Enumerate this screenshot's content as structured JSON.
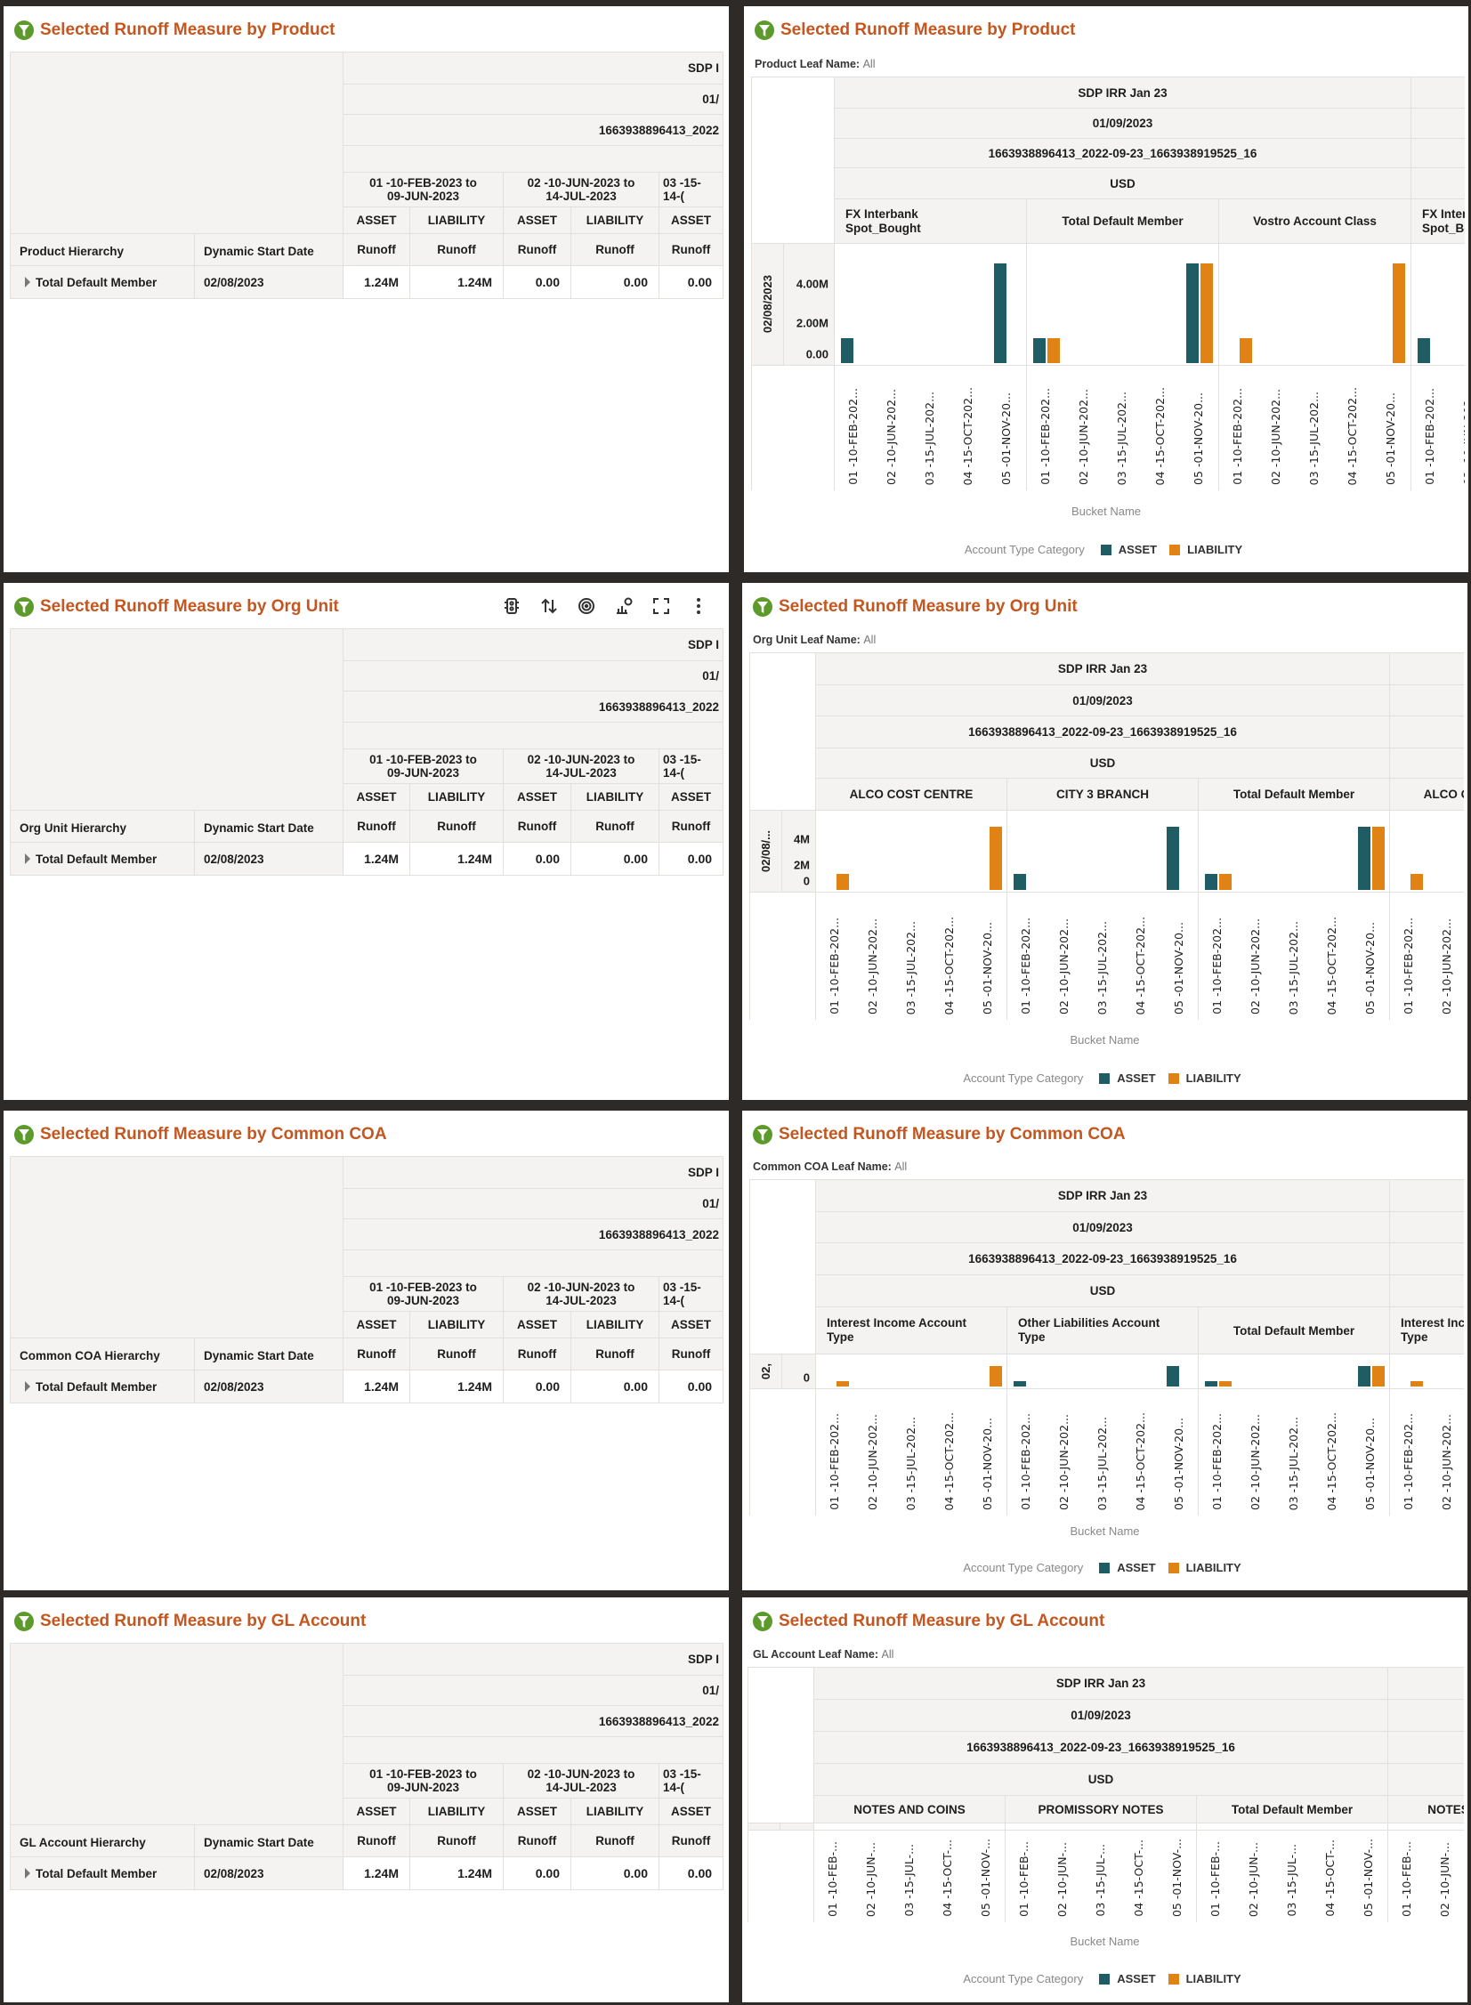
{
  "colors": {
    "asset": "#1f5c63",
    "liability": "#e08214",
    "title": "#c4561f",
    "funnel": "#5d9a2c"
  },
  "left_panels": [
    {
      "title": "Selected Runoff Measure by Product",
      "icon": "funnel-icon",
      "table": {
        "header_rows": [
          "SDP I",
          "01/",
          "1663938896413_2022",
          ""
        ],
        "buckets": [
          "01 -10-FEB-2023 to\n09-JUN-2023",
          "02 -10-JUN-2023 to\n14-JUL-2023",
          "03 -15-\n14-("
        ],
        "account_types": [
          "ASSET",
          "LIABILITY",
          "ASSET",
          "LIABILITY",
          "ASSET"
        ],
        "measures": [
          "Runoff",
          "Runoff",
          "Runoff",
          "Runoff",
          "Runoff"
        ],
        "hierarchy_header": "Product Hierarchy",
        "date_header": "Dynamic Start Date",
        "rows": [
          {
            "member": "Total Default Member",
            "date": "02/08/2023",
            "values": [
              "1.24M",
              "1.24M",
              "0.00",
              "0.00",
              "0.00"
            ]
          }
        ]
      }
    },
    {
      "title": "Selected Runoff Measure by Org Unit",
      "icon": "funnel-icon",
      "toolbar": [
        "conditional-format-icon",
        "sort-icon",
        "target-icon",
        "chart-type-icon",
        "maximize-icon",
        "more-options-icon"
      ],
      "table": {
        "header_rows": [
          "SDP I",
          "01/",
          "1663938896413_2022",
          ""
        ],
        "buckets": [
          "01 -10-FEB-2023 to\n09-JUN-2023",
          "02 -10-JUN-2023 to\n14-JUL-2023",
          "03 -15-\n14-("
        ],
        "account_types": [
          "ASSET",
          "LIABILITY",
          "ASSET",
          "LIABILITY",
          "ASSET"
        ],
        "measures": [
          "Runoff",
          "Runoff",
          "Runoff",
          "Runoff",
          "Runoff"
        ],
        "hierarchy_header": "Org Unit Hierarchy",
        "date_header": "Dynamic Start Date",
        "rows": [
          {
            "member": "Total Default Member",
            "date": "02/08/2023",
            "values": [
              "1.24M",
              "1.24M",
              "0.00",
              "0.00",
              "0.00"
            ]
          }
        ]
      }
    },
    {
      "title": "Selected Runoff Measure by Common COA",
      "icon": "funnel-icon",
      "table": {
        "header_rows": [
          "SDP I",
          "01/",
          "1663938896413_2022",
          ""
        ],
        "buckets": [
          "01 -10-FEB-2023 to\n09-JUN-2023",
          "02 -10-JUN-2023 to\n14-JUL-2023",
          "03 -15-\n14-("
        ],
        "account_types": [
          "ASSET",
          "LIABILITY",
          "ASSET",
          "LIABILITY",
          "ASSET"
        ],
        "measures": [
          "Runoff",
          "Runoff",
          "Runoff",
          "Runoff",
          "Runoff"
        ],
        "hierarchy_header": "Common COA Hierarchy",
        "date_header": "Dynamic Start Date",
        "rows": [
          {
            "member": "Total Default Member",
            "date": "02/08/2023",
            "values": [
              "1.24M",
              "1.24M",
              "0.00",
              "0.00",
              "0.00"
            ]
          }
        ]
      }
    },
    {
      "title": "Selected Runoff Measure by GL Account",
      "icon": "funnel-icon",
      "table": {
        "header_rows": [
          "SDP I",
          "01/",
          "1663938896413_2022",
          ""
        ],
        "buckets": [
          "01 -10-FEB-2023 to\n09-JUN-2023",
          "02 -10-JUN-2023 to\n14-JUL-2023",
          "03 -15-\n14-("
        ],
        "account_types": [
          "ASSET",
          "LIABILITY",
          "ASSET",
          "LIABILITY",
          "ASSET"
        ],
        "measures": [
          "Runoff",
          "Runoff",
          "Runoff",
          "Runoff",
          "Runoff"
        ],
        "hierarchy_header": "GL Account Hierarchy",
        "date_header": "Dynamic Start Date",
        "rows": [
          {
            "member": "Total Default Member",
            "date": "02/08/2023",
            "values": [
              "1.24M",
              "1.24M",
              "0.00",
              "0.00",
              "0.00"
            ]
          }
        ]
      }
    }
  ],
  "chart_data": [
    {
      "type": "bar",
      "title": "Selected Runoff Measure by Product",
      "filter_label": "Product Leaf Name:",
      "filter_value": "All",
      "header_rows": [
        "SDP IRR Jan 23",
        "01/09/2023",
        "1663938896413_2022-09-23_1663938919525_16",
        "USD"
      ],
      "categories": [
        "FX Interbank\nSpot_Bought",
        "Total Default Member",
        "Vostro Account Class",
        "FX Interbank\nSpot_Bought"
      ],
      "buckets": [
        "01 -10-FEB-202...",
        "02 -10-JUN-202...",
        "03 -15-JUL-202...",
        "04 -15-OCT-202...",
        "05 -01-NOV-20..."
      ],
      "row_label": "02/08/2023",
      "yticks": [
        {
          "value": 0,
          "label": "0.00"
        },
        {
          "value": 2000000,
          "label": "2.00M"
        },
        {
          "value": 4000000,
          "label": "4.00M"
        }
      ],
      "ylim": [
        0,
        5500000
      ],
      "xlabel": "Bucket Name",
      "legend_title": "Account Type Category",
      "series": [
        {
          "name": "ASSET",
          "values": [
            [
              1240000,
              0,
              0,
              0,
              5000000
            ],
            [
              1240000,
              0,
              0,
              0,
              5000000
            ],
            [
              0,
              0,
              0,
              0,
              0
            ],
            [
              1240000,
              0,
              0,
              0,
              0
            ]
          ]
        },
        {
          "name": "LIABILITY",
          "values": [
            [
              0,
              0,
              0,
              0,
              0
            ],
            [
              1240000,
              0,
              0,
              0,
              5000000
            ],
            [
              1240000,
              0,
              0,
              0,
              5000000
            ],
            [
              0,
              0,
              0,
              0,
              0
            ]
          ]
        }
      ]
    },
    {
      "type": "bar",
      "title": "Selected Runoff Measure by Org Unit",
      "filter_label": "Org Unit Leaf Name:",
      "filter_value": "All",
      "header_rows": [
        "SDP IRR Jan 23",
        "01/09/2023",
        "1663938896413_2022-09-23_1663938919525_16",
        "USD"
      ],
      "categories": [
        "ALCO COST CENTRE",
        "CITY 3 BRANCH",
        "Total Default Member",
        "ALCO COST CENTRE"
      ],
      "buckets": [
        "01 -10-FEB-202...",
        "02 -10-JUN-202...",
        "03 -15-JUL-202...",
        "04 -15-OCT-202...",
        "05 -01-NOV-20..."
      ],
      "row_label": "02/08/...",
      "yticks": [
        {
          "value": 0,
          "label": "0"
        },
        {
          "value": 2000000,
          "label": "2M"
        },
        {
          "value": 4000000,
          "label": "4M"
        }
      ],
      "ylim": [
        0,
        5500000
      ],
      "xlabel": "Bucket Name",
      "legend_title": "Account Type Category",
      "series": [
        {
          "name": "ASSET",
          "values": [
            [
              0,
              0,
              0,
              0,
              0
            ],
            [
              1240000,
              0,
              0,
              0,
              5000000
            ],
            [
              1240000,
              0,
              0,
              0,
              5000000
            ],
            [
              0,
              0,
              0,
              0,
              0
            ]
          ]
        },
        {
          "name": "LIABILITY",
          "values": [
            [
              1240000,
              0,
              0,
              0,
              5000000
            ],
            [
              0,
              0,
              0,
              0,
              0
            ],
            [
              1240000,
              0,
              0,
              0,
              5000000
            ],
            [
              1240000,
              0,
              0,
              0,
              0
            ]
          ]
        }
      ]
    },
    {
      "type": "bar",
      "title": "Selected Runoff Measure by Common COA",
      "filter_label": "Common COA Leaf Name:",
      "filter_value": "All",
      "header_rows": [
        "SDP IRR Jan 23",
        "01/09/2023",
        "1663938896413_2022-09-23_1663938919525_16",
        "USD"
      ],
      "categories": [
        "Interest Income Account\nType",
        "Other Liabilities Account\nType",
        "Total Default Member",
        "Interest Income Account\nType"
      ],
      "buckets": [
        "01 -10-FEB-202...",
        "02 -10-JUN-202...",
        "03 -15-JUL-202...",
        "04 -15-OCT-202...",
        "05 -01-NOV-20..."
      ],
      "row_label": "02,",
      "yticks": [
        {
          "value": 0,
          "label": "0"
        }
      ],
      "ylim": [
        0,
        5500000
      ],
      "xlabel": "Bucket Name",
      "legend_title": "Account Type Category",
      "series": [
        {
          "name": "ASSET",
          "values": [
            [
              0,
              0,
              0,
              0,
              0
            ],
            [
              1240000,
              0,
              0,
              0,
              5000000
            ],
            [
              1240000,
              0,
              0,
              0,
              5000000
            ],
            [
              0,
              0,
              0,
              0,
              0
            ]
          ]
        },
        {
          "name": "LIABILITY",
          "values": [
            [
              1240000,
              0,
              0,
              0,
              5000000
            ],
            [
              0,
              0,
              0,
              0,
              0
            ],
            [
              1240000,
              0,
              0,
              0,
              5000000
            ],
            [
              1240000,
              0,
              0,
              0,
              0
            ]
          ]
        }
      ]
    },
    {
      "type": "bar",
      "title": "Selected Runoff Measure by GL Account",
      "filter_label": "GL Account Leaf Name:",
      "filter_value": "All",
      "header_rows": [
        "SDP IRR Jan 23",
        "01/09/2023",
        "1663938896413_2022-09-23_1663938919525_16",
        "USD"
      ],
      "categories": [
        "NOTES AND COINS",
        "PROMISSORY NOTES",
        "Total Default Member",
        "NOTES AND COINS"
      ],
      "buckets": [
        "01 -10-FEB-...",
        "02 -10-JUN-...",
        "03 -15-JUL-...",
        "04 -15-OCT-...",
        "05 -01-NOV-..."
      ],
      "row_label": "",
      "yticks": [],
      "xlabel": "Bucket Name",
      "legend_title": "Account Type Category",
      "series": [
        {
          "name": "ASSET"
        },
        {
          "name": "LIABILITY"
        }
      ]
    }
  ]
}
